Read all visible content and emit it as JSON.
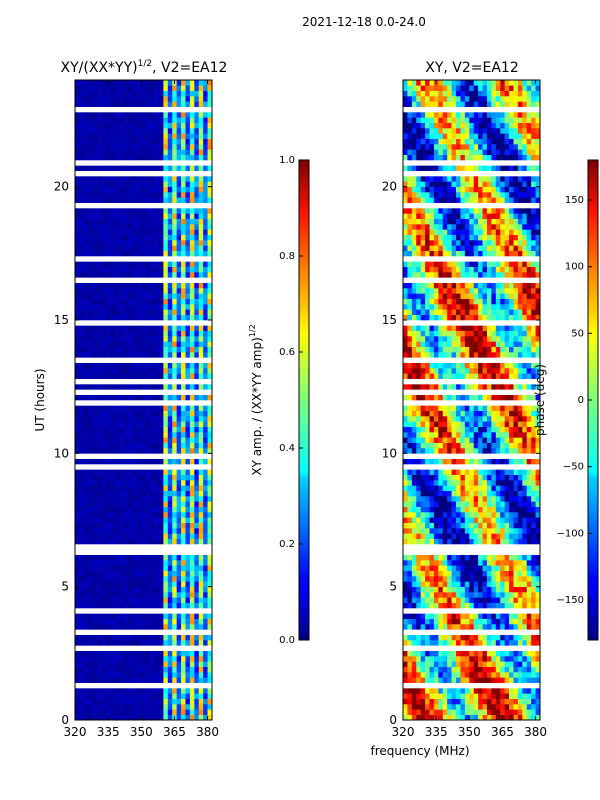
{
  "suptitle": "2021-12-18 0.0-24.0",
  "xlabel_shared": "frequency (MHz)",
  "chart_data": [
    {
      "type": "heatmap",
      "title_main": "XY/(XX*YY)",
      "title_sup": "1/2",
      "title_rest": ", V2=EA12",
      "ylabel": "UT (hours)",
      "xlim": [
        320,
        382
      ],
      "ylim": [
        0,
        24
      ],
      "xticks": [
        320,
        335,
        350,
        365,
        380
      ],
      "yticks": [
        0,
        5,
        10,
        15,
        20
      ],
      "colorbar": {
        "label_main": "XY amp. / (XX*YY amp)",
        "label_sup": "1/2",
        "range": [
          0.0,
          1.0
        ],
        "ticks": [
          "0.0",
          "0.2",
          "0.4",
          "0.6",
          "0.8",
          "1.0"
        ],
        "tick_values": [
          0.0,
          0.2,
          0.4,
          0.6,
          0.8,
          1.0
        ],
        "colormap": "jet"
      },
      "notes": "Background near 0.0 (dark blue) for 320-361 MHz; higher amplitudes (0.3-0.8) in 361-380 MHz band; white rows are flagged/missing time samples."
    },
    {
      "type": "heatmap",
      "title": "XY, V2=EA12",
      "xlim": [
        320,
        382
      ],
      "ylim": [
        0,
        24
      ],
      "xticks": [
        320,
        335,
        350,
        365,
        380
      ],
      "yticks": [
        0,
        5,
        10,
        15,
        20
      ],
      "colorbar": {
        "label": "phase (deg)",
        "range": [
          -180,
          180
        ],
        "ticks": [
          "150",
          "100",
          "50",
          "0",
          "−50",
          "−100",
          "−150"
        ],
        "tick_values": [
          150,
          100,
          50,
          0,
          -50,
          -100,
          -150
        ],
        "colormap": "jet"
      },
      "notes": "Phase values span the full -180 to 180 deg range; noisy pattern with coherent structures; white rows are flagged time samples."
    }
  ],
  "colors": {
    "jet_low": "#00007f",
    "jet_high": "#7f0000",
    "flagged": "#ffffff"
  }
}
